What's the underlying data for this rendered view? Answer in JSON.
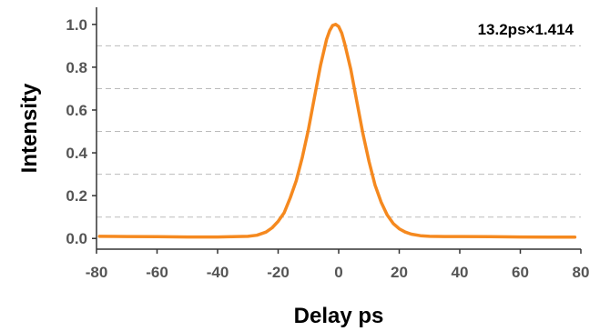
{
  "chart_data": {
    "type": "line",
    "title": "",
    "xlabel": "Delay ps",
    "ylabel": "Intensity",
    "annotation": "13.2ps×1.414",
    "xlim": [
      -80,
      80
    ],
    "ylim": [
      -0.05,
      1.08
    ],
    "xticks": [
      -80,
      -60,
      -40,
      -20,
      0,
      20,
      40,
      60,
      80
    ],
    "yticks": [
      "0.0",
      "0.2",
      "0.4",
      "0.6",
      "0.8",
      "1.0"
    ],
    "gridlines_y": [
      0.1,
      0.3,
      0.5,
      0.7,
      0.9
    ],
    "grid": "dashed horizontal at 0.1, 0.3, 0.5, 0.7, 0.9",
    "series": [
      {
        "color": "#f5891f",
        "x": [
          -79,
          -70,
          -60,
          -50,
          -40,
          -35,
          -30,
          -27,
          -24,
          -22,
          -20,
          -18,
          -16,
          -14,
          -12,
          -10,
          -8,
          -6,
          -4,
          -3,
          -2,
          -1,
          0,
          1,
          2,
          4,
          6,
          8,
          10,
          12,
          14,
          16,
          18,
          20,
          22,
          24,
          27,
          30,
          35,
          40,
          50,
          60,
          70,
          78
        ],
        "y": [
          0.01,
          0.009,
          0.008,
          0.007,
          0.007,
          0.008,
          0.01,
          0.015,
          0.03,
          0.05,
          0.08,
          0.12,
          0.19,
          0.27,
          0.38,
          0.51,
          0.66,
          0.81,
          0.93,
          0.97,
          0.995,
          1.0,
          0.99,
          0.96,
          0.91,
          0.79,
          0.64,
          0.49,
          0.36,
          0.25,
          0.17,
          0.11,
          0.07,
          0.045,
          0.03,
          0.02,
          0.013,
          0.01,
          0.009,
          0.009,
          0.008,
          0.007,
          0.006,
          0.006
        ]
      }
    ]
  }
}
